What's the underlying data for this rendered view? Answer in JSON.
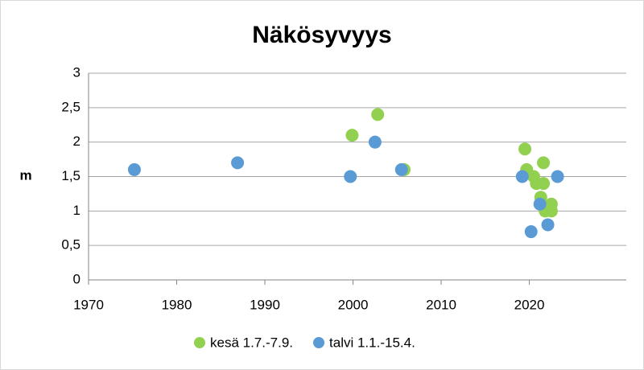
{
  "chart_data": {
    "type": "scatter",
    "title": "Näkösyvyys",
    "y_label": "m",
    "xlim": [
      1970,
      2031
    ],
    "xticks": [
      1970,
      1980,
      1990,
      2000,
      2010,
      2020
    ],
    "ylim": [
      0,
      3
    ],
    "yticks": [
      0,
      {
        "value": 0.5,
        "label": "0,5"
      },
      1,
      {
        "value": 1.5,
        "label": "1,5"
      },
      2,
      {
        "value": 2.5,
        "label": "2,5"
      },
      3
    ],
    "grid": true,
    "legend": "bottom",
    "series": [
      {
        "name": "kesä 1.7.-7.9.",
        "color": "#92d050",
        "x": [
          1999.9,
          2002.8,
          2005.8,
          2019.5,
          2019.7,
          2020.5,
          2020.8,
          2021.3,
          2021.6,
          2021.6,
          2021.8,
          2022.5,
          2022.5
        ],
        "values": [
          2.1,
          2.4,
          1.6,
          1.9,
          1.6,
          1.5,
          1.4,
          1.2,
          1.7,
          1.4,
          1.0,
          1.1,
          1.0
        ]
      },
      {
        "name": "talvi 1.1.-15.4.",
        "color": "#5b9bd5",
        "x": [
          1975.2,
          1986.9,
          1999.7,
          2002.5,
          2005.5,
          2019.2,
          2021.2,
          2020.2,
          2022.1,
          2023.2
        ],
        "values": [
          1.6,
          1.7,
          1.5,
          2.0,
          1.6,
          1.5,
          1.1,
          0.7,
          0.8,
          1.5
        ]
      }
    ]
  }
}
